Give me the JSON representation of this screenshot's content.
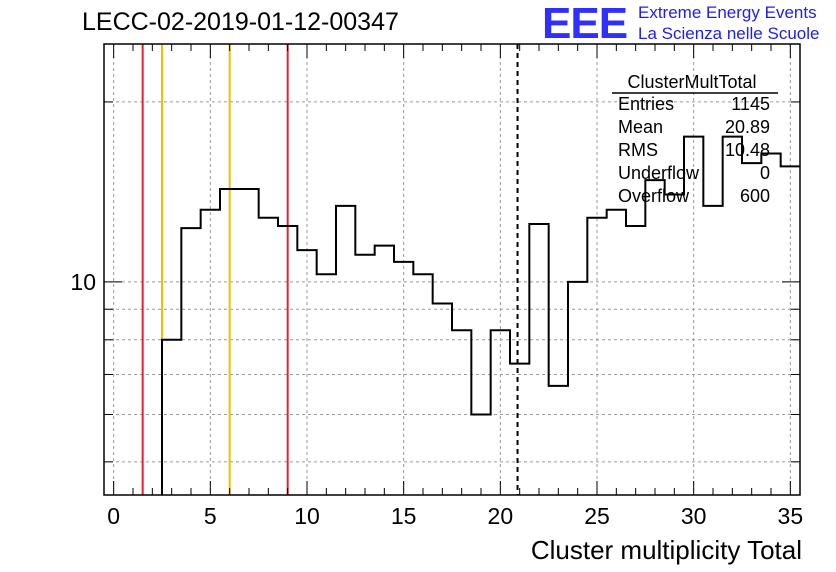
{
  "header": {
    "run_title": "LECC-02-2019-01-12-00347",
    "logo_mark": "EEE",
    "logo_line1": "Extreme Energy Events",
    "logo_line2": "La Scienza nelle Scuole"
  },
  "stats_box": {
    "title": "ClusterMultTotal",
    "rows": [
      {
        "label": "Entries",
        "value": "1145"
      },
      {
        "label": "Mean",
        "value": "20.89"
      },
      {
        "label": "RMS",
        "value": "10.48"
      },
      {
        "label": "Underflow",
        "value": "0"
      },
      {
        "label": "Overflow",
        "value": "600"
      }
    ]
  },
  "chart_data": {
    "type": "histogram",
    "title": "LECC-02-2019-01-12-00347",
    "xlabel": "Cluster multiplicity Total",
    "ylabel": "",
    "xlim": [
      -0.5,
      35.5
    ],
    "ylim": [
      4.4,
      25
    ],
    "log_y": true,
    "grid": true,
    "x_ticks": [
      0,
      5,
      10,
      15,
      20,
      25,
      30,
      35
    ],
    "y_tick_labels": [
      {
        "value": 10,
        "label": "10"
      }
    ],
    "bin_width": 1,
    "bins": [
      {
        "center": 0,
        "value": 0
      },
      {
        "center": 1,
        "value": 0
      },
      {
        "center": 2,
        "value": 0
      },
      {
        "center": 3,
        "value": 8
      },
      {
        "center": 4,
        "value": 12.3
      },
      {
        "center": 5,
        "value": 13.2
      },
      {
        "center": 6,
        "value": 14.3
      },
      {
        "center": 7,
        "value": 14.3
      },
      {
        "center": 8,
        "value": 12.8
      },
      {
        "center": 9,
        "value": 12.4
      },
      {
        "center": 10,
        "value": 11.3
      },
      {
        "center": 11,
        "value": 10.3
      },
      {
        "center": 12,
        "value": 13.4
      },
      {
        "center": 13,
        "value": 11.1
      },
      {
        "center": 14,
        "value": 11.5
      },
      {
        "center": 15,
        "value": 10.8
      },
      {
        "center": 16,
        "value": 10.3
      },
      {
        "center": 17,
        "value": 9.2
      },
      {
        "center": 18,
        "value": 8.3
      },
      {
        "center": 19,
        "value": 6.0
      },
      {
        "center": 20,
        "value": 8.3
      },
      {
        "center": 21,
        "value": 7.3
      },
      {
        "center": 22,
        "value": 12.5
      },
      {
        "center": 23,
        "value": 6.7
      },
      {
        "center": 24,
        "value": 10.0
      },
      {
        "center": 25,
        "value": 12.8
      },
      {
        "center": 26,
        "value": 13.2
      },
      {
        "center": 27,
        "value": 12.4
      },
      {
        "center": 28,
        "value": 14.8
      },
      {
        "center": 29,
        "value": 14.0
      },
      {
        "center": 30,
        "value": 17.5
      },
      {
        "center": 31,
        "value": 13.4
      },
      {
        "center": 32,
        "value": 17.5
      },
      {
        "center": 33,
        "value": 15.8
      },
      {
        "center": 34,
        "value": 16.4
      },
      {
        "center": 35,
        "value": 15.6
      }
    ],
    "vertical_lines": [
      {
        "x": 1.5,
        "color": "#e8202a",
        "style": "solid",
        "role": "red-marker"
      },
      {
        "x": 2.5,
        "color": "#f0c000",
        "style": "solid",
        "role": "yellow-marker"
      },
      {
        "x": 6.0,
        "color": "#f0c000",
        "style": "solid",
        "role": "yellow-marker"
      },
      {
        "x": 9.0,
        "color": "#e8202a",
        "style": "solid",
        "role": "red-marker"
      },
      {
        "x": 20.89,
        "color": "#000000",
        "style": "dashed",
        "role": "mean-marker"
      }
    ]
  }
}
